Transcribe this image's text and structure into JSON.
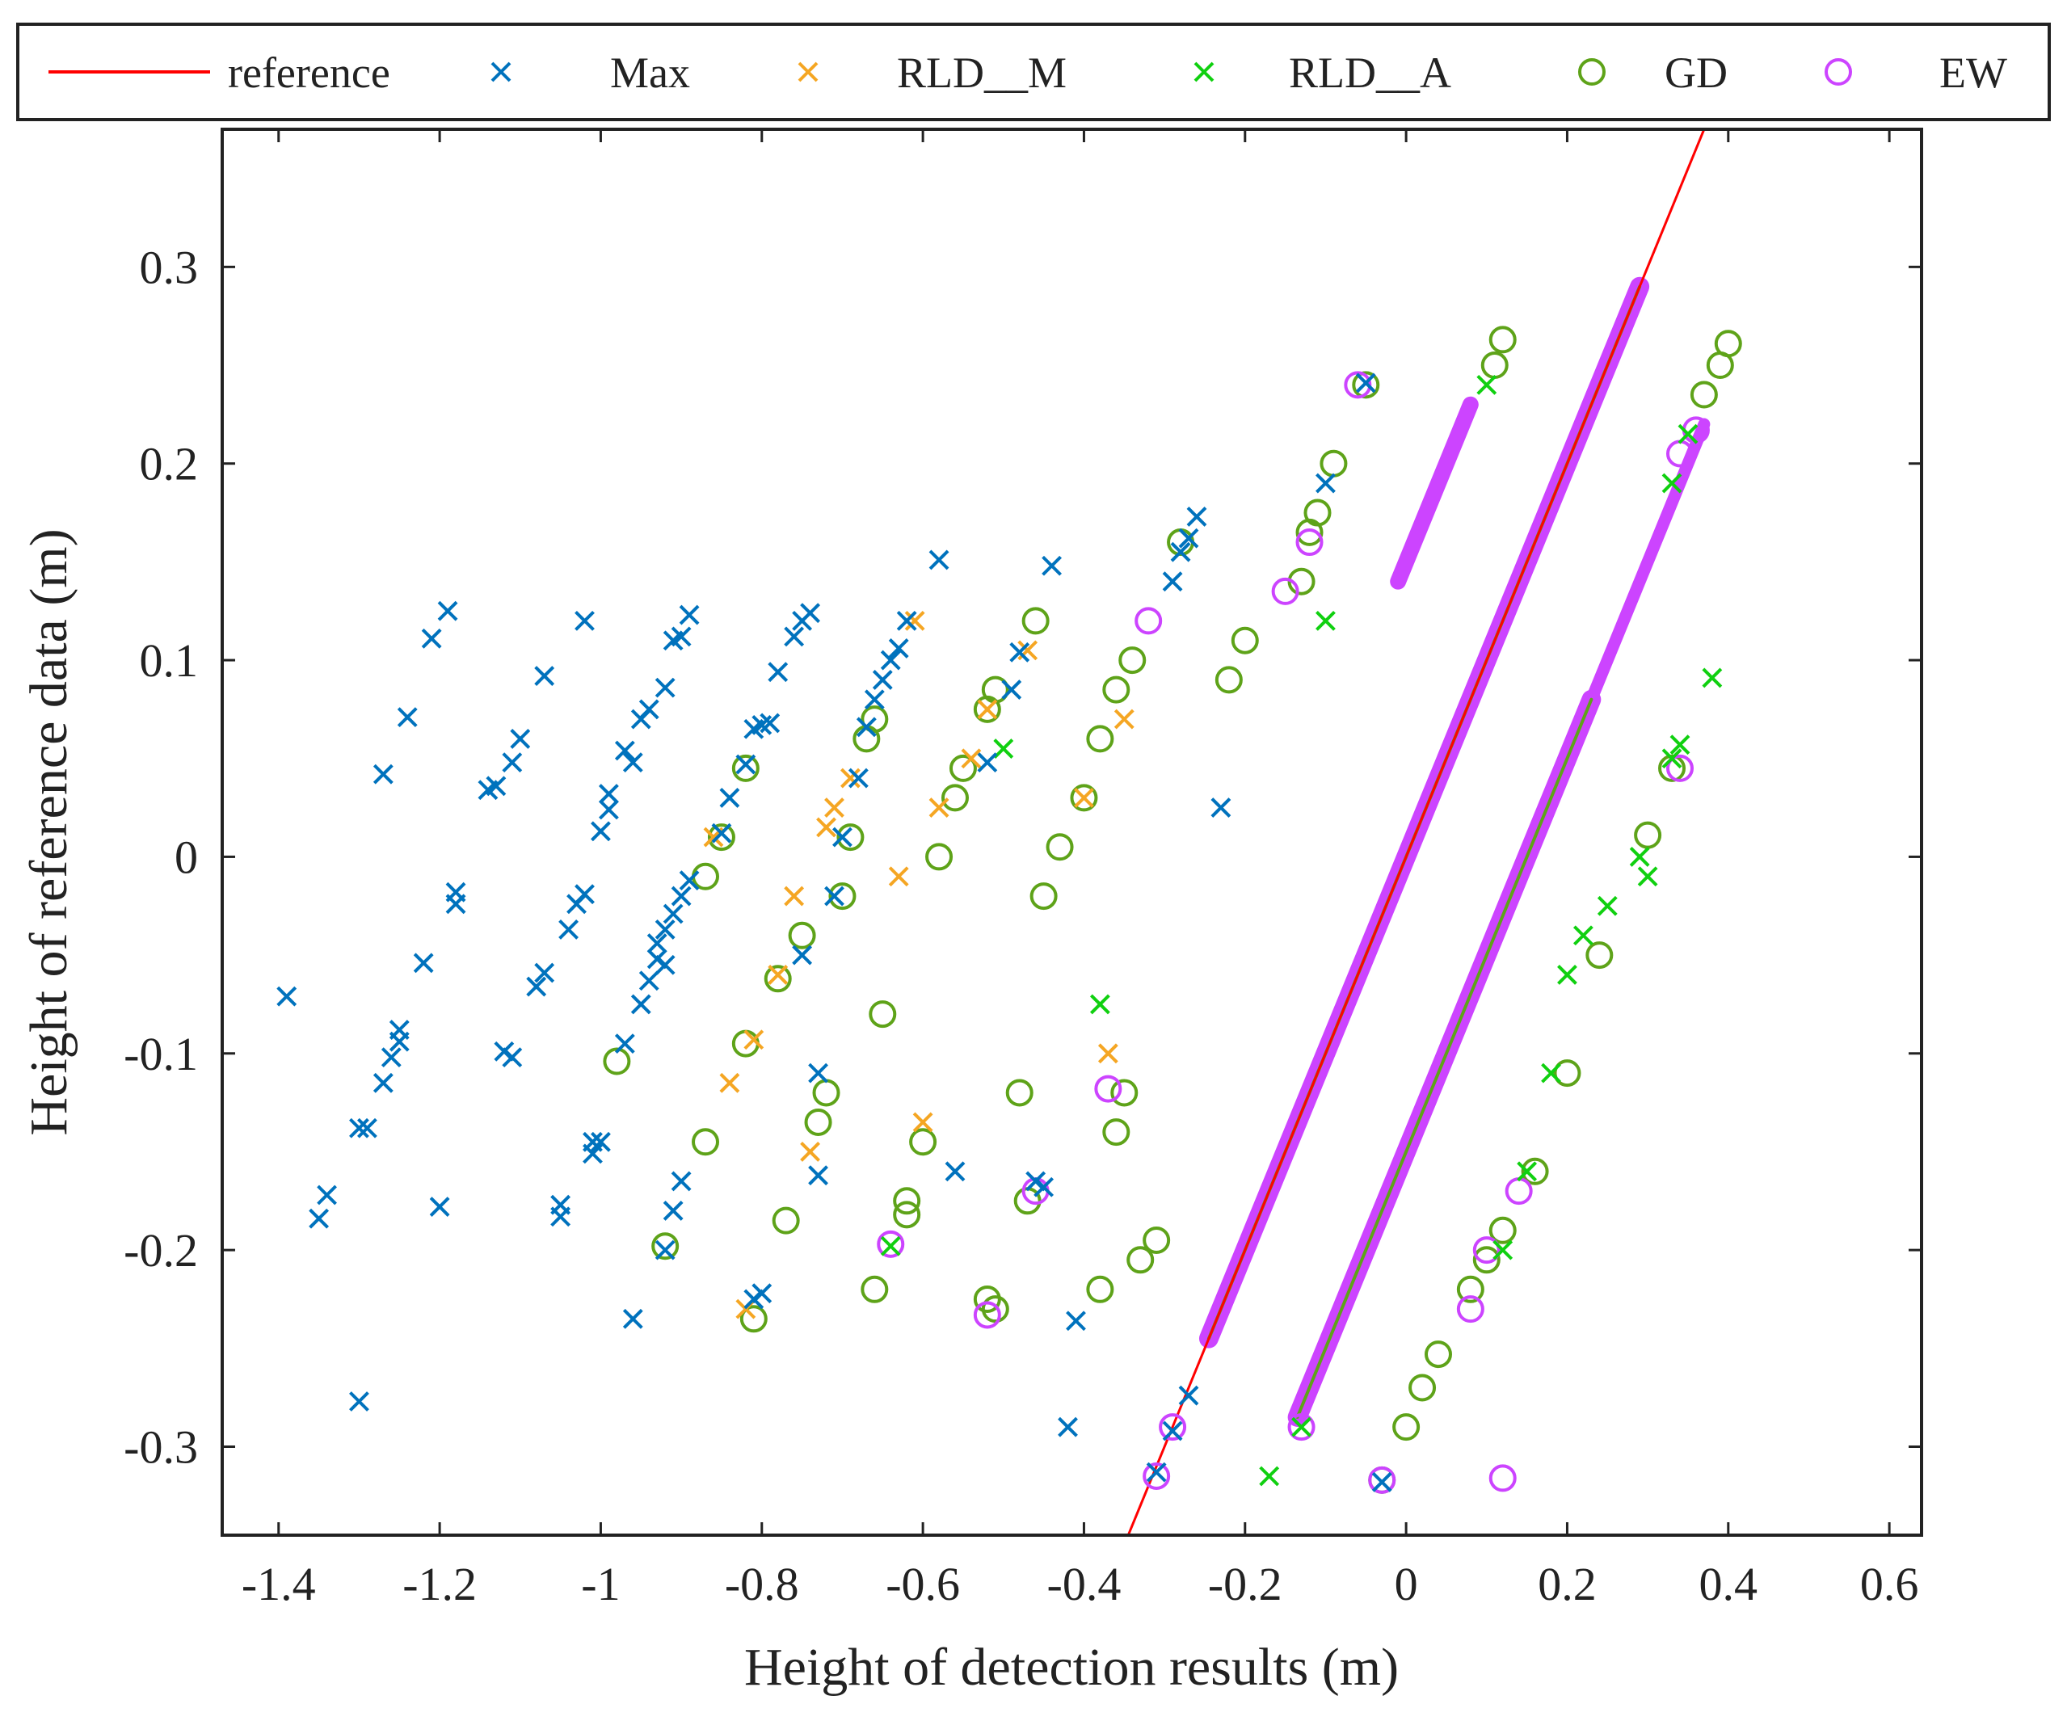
{
  "chart_data": {
    "type": "scatter",
    "title": "",
    "xlabel": "Height of detection results (m)",
    "ylabel": "Height of reference data (m)",
    "xlim": [
      -1.47,
      0.64
    ],
    "ylim": [
      -0.345,
      0.37
    ],
    "xticks": [
      -1.4,
      -1.2,
      -1,
      -0.8,
      -0.6,
      -0.4,
      -0.2,
      0,
      0.2,
      0.4,
      0.6
    ],
    "xtick_labels": [
      "-1.4",
      "-1.2",
      "-1",
      "-0.8",
      "-0.6",
      "-0.4",
      "-0.2",
      "0",
      "0.2",
      "0.4",
      "0.6"
    ],
    "yticks": [
      -0.3,
      -0.2,
      -0.1,
      0,
      0.1,
      0.2,
      0.3
    ],
    "ytick_labels": [
      "-0.3",
      "-0.2",
      "-0.1",
      "0",
      "0.1",
      "0.2",
      "0.3"
    ],
    "grid": false,
    "legend_position": "top, horizontal, outside plot",
    "reference_line": {
      "name": "reference",
      "color": "#ff0000",
      "x": [
        -0.345,
        0.37
      ],
      "y": [
        -0.345,
        0.37
      ]
    },
    "series": [
      {
        "name": "Max",
        "marker": "x",
        "color": "#0072bd",
        "points": [
          [
            -1.39,
            -0.071
          ],
          [
            -1.35,
            -0.184
          ],
          [
            -1.34,
            -0.172
          ],
          [
            -1.3,
            -0.138
          ],
          [
            -1.29,
            -0.138
          ],
          [
            -1.3,
            -0.277
          ],
          [
            -1.27,
            -0.115
          ],
          [
            -1.26,
            -0.102
          ],
          [
            -1.25,
            -0.094
          ],
          [
            -1.25,
            -0.088
          ],
          [
            -1.27,
            0.042
          ],
          [
            -1.24,
            0.071
          ],
          [
            -1.22,
            -0.054
          ],
          [
            -1.21,
            0.111
          ],
          [
            -1.19,
            0.125
          ],
          [
            -1.18,
            -0.018
          ],
          [
            -1.18,
            -0.024
          ],
          [
            -1.2,
            -0.178
          ],
          [
            -1.14,
            0.034
          ],
          [
            -1.13,
            0.036
          ],
          [
            -1.12,
            -0.099
          ],
          [
            -1.11,
            -0.102
          ],
          [
            -1.11,
            0.048
          ],
          [
            -1.1,
            0.06
          ],
          [
            -1.08,
            -0.066
          ],
          [
            -1.07,
            -0.059
          ],
          [
            -1.07,
            0.092
          ],
          [
            -1.05,
            -0.177
          ],
          [
            -1.05,
            -0.183
          ],
          [
            -1.04,
            -0.037
          ],
          [
            -1.03,
            -0.024
          ],
          [
            -1.02,
            -0.019
          ],
          [
            -1.01,
            -0.145
          ],
          [
            -1.01,
            -0.151
          ],
          [
            -1.0,
            -0.145
          ],
          [
            -1.02,
            0.12
          ],
          [
            -1.0,
            0.013
          ],
          [
            -0.99,
            0.024
          ],
          [
            -0.99,
            0.032
          ],
          [
            -0.97,
            0.054
          ],
          [
            -0.96,
            0.048
          ],
          [
            -0.95,
            0.07
          ],
          [
            -0.94,
            0.075
          ],
          [
            -0.94,
            -0.063
          ],
          [
            -0.93,
            -0.052
          ],
          [
            -0.93,
            -0.044
          ],
          [
            -0.92,
            -0.037
          ],
          [
            -0.91,
            -0.029
          ],
          [
            -0.9,
            -0.02
          ],
          [
            -0.89,
            -0.012
          ],
          [
            -0.92,
            0.086
          ],
          [
            -0.9,
            0.112
          ],
          [
            -0.89,
            0.123
          ],
          [
            -0.92,
            -0.2
          ],
          [
            -0.91,
            -0.18
          ],
          [
            -0.9,
            -0.165
          ],
          [
            -0.96,
            -0.235
          ],
          [
            -0.97,
            -0.095
          ],
          [
            -0.95,
            -0.075
          ],
          [
            -0.92,
            -0.055
          ],
          [
            -0.91,
            0.11
          ],
          [
            -0.85,
            0.012
          ],
          [
            -0.84,
            0.03
          ],
          [
            -0.82,
            0.047
          ],
          [
            -0.81,
            0.065
          ],
          [
            -0.8,
            0.067
          ],
          [
            -0.79,
            0.068
          ],
          [
            -0.81,
            -0.225
          ],
          [
            -0.8,
            -0.222
          ],
          [
            -0.78,
            0.094
          ],
          [
            -0.76,
            0.112
          ],
          [
            -0.75,
            0.12
          ],
          [
            -0.74,
            0.124
          ],
          [
            -0.73,
            -0.162
          ],
          [
            -0.73,
            -0.11
          ],
          [
            -0.75,
            -0.05
          ],
          [
            -0.71,
            -0.02
          ],
          [
            -0.7,
            0.01
          ],
          [
            -0.68,
            0.04
          ],
          [
            -0.67,
            0.066
          ],
          [
            -0.66,
            0.08
          ],
          [
            -0.65,
            0.09
          ],
          [
            -0.64,
            0.1
          ],
          [
            -0.63,
            0.106
          ],
          [
            -0.62,
            0.12
          ],
          [
            -0.58,
            0.151
          ],
          [
            -0.56,
            -0.16
          ],
          [
            -0.52,
            0.048
          ],
          [
            -0.49,
            0.085
          ],
          [
            -0.48,
            0.104
          ],
          [
            -0.46,
            -0.165
          ],
          [
            -0.45,
            -0.168
          ],
          [
            -0.44,
            0.148
          ],
          [
            -0.42,
            -0.29
          ],
          [
            -0.41,
            -0.236
          ],
          [
            -0.29,
            0.14
          ],
          [
            -0.28,
            0.155
          ],
          [
            -0.27,
            0.162
          ],
          [
            -0.26,
            0.173
          ],
          [
            -0.23,
            0.025
          ],
          [
            -0.1,
            0.19
          ],
          [
            -0.05,
            0.241
          ],
          [
            -0.03,
            -0.318
          ],
          [
            -0.31,
            -0.313
          ],
          [
            -0.29,
            -0.292
          ],
          [
            -0.27,
            -0.274
          ]
        ]
      },
      {
        "name": "RLD__M",
        "marker": "x",
        "color": "#f5a623",
        "points": [
          [
            -0.86,
            0.01
          ],
          [
            -0.84,
            -0.115
          ],
          [
            -0.82,
            -0.23
          ],
          [
            -0.81,
            -0.093
          ],
          [
            -0.78,
            -0.06
          ],
          [
            -0.76,
            -0.02
          ],
          [
            -0.74,
            -0.15
          ],
          [
            -0.72,
            0.015
          ],
          [
            -0.71,
            0.025
          ],
          [
            -0.69,
            0.04
          ],
          [
            -0.63,
            -0.01
          ],
          [
            -0.61,
            0.12
          ],
          [
            -0.6,
            -0.135
          ],
          [
            -0.58,
            0.025
          ],
          [
            -0.54,
            0.05
          ],
          [
            -0.52,
            0.075
          ],
          [
            -0.47,
            0.105
          ],
          [
            -0.4,
            0.03
          ],
          [
            -0.37,
            -0.1
          ],
          [
            -0.35,
            0.07
          ]
        ]
      },
      {
        "name": "RLD__A",
        "marker": "x",
        "color": "#10d010",
        "points": [
          [
            -0.64,
            -0.198
          ],
          [
            -0.5,
            0.055
          ],
          [
            -0.38,
            -0.075
          ],
          [
            -0.17,
            -0.315
          ],
          [
            -0.1,
            0.12
          ],
          [
            -0.13,
            -0.29
          ],
          [
            0.1,
            0.24
          ],
          [
            0.3,
            -0.01
          ],
          [
            0.33,
            0.05
          ],
          [
            0.34,
            0.057
          ],
          [
            0.38,
            0.091
          ],
          [
            0.2,
            -0.06
          ],
          [
            0.22,
            -0.04
          ],
          [
            0.25,
            -0.025
          ],
          [
            0.29,
            0.0
          ],
          [
            0.12,
            -0.2
          ],
          [
            0.15,
            -0.16
          ],
          [
            0.18,
            -0.11
          ],
          [
            0.33,
            0.19
          ],
          [
            0.35,
            0.215
          ]
        ]
      },
      {
        "name": "GD",
        "marker": "o",
        "color": "#5ea319",
        "points": [
          [
            -0.98,
            -0.104
          ],
          [
            -0.92,
            -0.198
          ],
          [
            -0.87,
            -0.145
          ],
          [
            -0.87,
            -0.01
          ],
          [
            -0.85,
            0.01
          ],
          [
            -0.82,
            0.045
          ],
          [
            -0.82,
            -0.095
          ],
          [
            -0.81,
            -0.235
          ],
          [
            -0.78,
            -0.062
          ],
          [
            -0.77,
            -0.185
          ],
          [
            -0.75,
            -0.04
          ],
          [
            -0.73,
            -0.135
          ],
          [
            -0.72,
            -0.12
          ],
          [
            -0.7,
            -0.02
          ],
          [
            -0.69,
            0.01
          ],
          [
            -0.67,
            0.06
          ],
          [
            -0.66,
            0.07
          ],
          [
            -0.66,
            -0.22
          ],
          [
            -0.65,
            -0.08
          ],
          [
            -0.62,
            -0.175
          ],
          [
            -0.62,
            -0.182
          ],
          [
            -0.6,
            -0.145
          ],
          [
            -0.58,
            0.0
          ],
          [
            -0.56,
            0.03
          ],
          [
            -0.55,
            0.045
          ],
          [
            -0.52,
            0.075
          ],
          [
            -0.51,
            0.085
          ],
          [
            -0.52,
            -0.225
          ],
          [
            -0.51,
            -0.23
          ],
          [
            -0.48,
            -0.12
          ],
          [
            -0.47,
            -0.175
          ],
          [
            -0.46,
            0.12
          ],
          [
            -0.45,
            -0.02
          ],
          [
            -0.43,
            0.005
          ],
          [
            -0.4,
            0.03
          ],
          [
            -0.38,
            0.06
          ],
          [
            -0.36,
            0.085
          ],
          [
            -0.34,
            0.1
          ],
          [
            -0.38,
            -0.22
          ],
          [
            -0.36,
            -0.14
          ],
          [
            -0.35,
            -0.12
          ],
          [
            -0.33,
            -0.205
          ],
          [
            -0.31,
            -0.195
          ],
          [
            -0.28,
            0.16
          ],
          [
            -0.22,
            0.09
          ],
          [
            -0.2,
            0.11
          ],
          [
            -0.13,
            0.14
          ],
          [
            -0.12,
            0.165
          ],
          [
            -0.11,
            0.175
          ],
          [
            -0.09,
            0.2
          ],
          [
            -0.05,
            0.24
          ],
          [
            -0.03,
            -0.317
          ],
          [
            0.0,
            -0.29
          ],
          [
            0.02,
            -0.27
          ],
          [
            0.04,
            -0.253
          ],
          [
            0.08,
            -0.22
          ],
          [
            0.1,
            -0.205
          ],
          [
            0.11,
            0.25
          ],
          [
            0.12,
            0.263
          ],
          [
            0.12,
            -0.19
          ],
          [
            0.16,
            -0.16
          ],
          [
            0.2,
            -0.11
          ],
          [
            0.24,
            -0.05
          ],
          [
            0.3,
            0.011
          ],
          [
            0.33,
            0.045
          ],
          [
            0.37,
            0.235
          ],
          [
            0.39,
            0.25
          ],
          [
            0.4,
            0.261
          ]
        ]
      },
      {
        "name": "EW",
        "marker": "o",
        "color": "#cc44ff",
        "points": [
          [
            -0.64,
            -0.197
          ],
          [
            -0.52,
            -0.233
          ],
          [
            -0.46,
            -0.17
          ],
          [
            -0.37,
            -0.118
          ],
          [
            -0.32,
            0.12
          ],
          [
            -0.31,
            -0.315
          ],
          [
            -0.29,
            -0.29
          ],
          [
            -0.15,
            0.135
          ],
          [
            -0.12,
            0.16
          ],
          [
            -0.06,
            0.24
          ],
          [
            -0.03,
            -0.317
          ],
          [
            0.12,
            -0.316
          ],
          [
            0.08,
            -0.23
          ],
          [
            0.1,
            -0.2
          ],
          [
            0.14,
            -0.17
          ],
          [
            0.34,
            0.045
          ],
          [
            0.36,
            0.217
          ],
          [
            0.34,
            0.205
          ],
          [
            -0.13,
            -0.29
          ]
        ]
      }
    ],
    "dense_bands": [
      {
        "name": "EW",
        "x_from": -0.245,
        "x_to": 0.29,
        "offset": 0,
        "width": 0.024
      },
      {
        "name": "EW",
        "x_from": -0.135,
        "x_to": 0.23,
        "offset": -0.15,
        "width": 0.024
      },
      {
        "name": "EW",
        "x_from": -0.01,
        "x_to": 0.08,
        "offset": 0.15,
        "width": 0.02
      },
      {
        "name": "EW",
        "x_from": 0.2,
        "x_to": 0.37,
        "offset": -0.15,
        "width": 0.015
      },
      {
        "name": "GD",
        "x_from": -0.245,
        "x_to": 0.29,
        "offset": 0,
        "width": 0.004
      },
      {
        "name": "GD",
        "x_from": -0.135,
        "x_to": 0.23,
        "offset": -0.15,
        "width": 0.004
      }
    ],
    "legend": [
      {
        "label": "reference",
        "marker": "line",
        "color": "#ff0000"
      },
      {
        "label": "Max",
        "marker": "x",
        "color": "#0072bd"
      },
      {
        "label": "RLD__M",
        "marker": "x",
        "color": "#f5a623"
      },
      {
        "label": "RLD__A",
        "marker": "x",
        "color": "#10d010"
      },
      {
        "label": "GD",
        "marker": "o",
        "color": "#5ea319"
      },
      {
        "label": "EW",
        "marker": "o",
        "color": "#cc44ff"
      }
    ]
  }
}
